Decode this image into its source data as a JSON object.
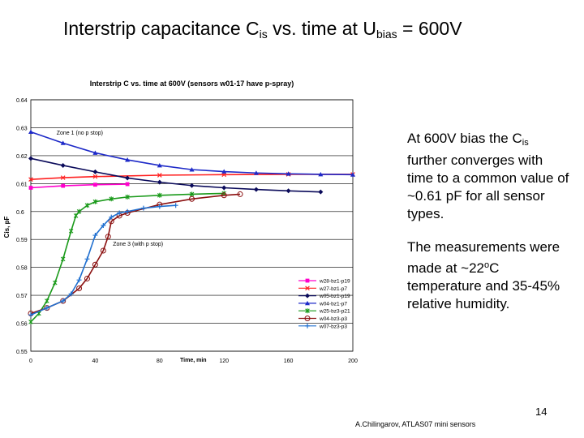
{
  "slide": {
    "title_main": "Interstrip capacitance C",
    "title_sub": "is",
    "title_mid": " vs. time at U",
    "title_sub2": "bias",
    "title_end": " = 600V",
    "note1_a": "At 600V bias the C",
    "note1_sub": "is",
    "note1_b": " further converges with time to a common value of ~0.61 pF for all sensor types.",
    "note2_a": "The measurements were made at ~22",
    "note2_sup": "o",
    "note2_b": "C temperature and 35-45% relative humidity.",
    "page_number": "14",
    "footer": "A.Chilingarov, ATLAS07 mini sensors"
  },
  "chart_data": {
    "type": "line",
    "title": "Interstrip C vs. time at 600V (sensors w01-17 have p-spray)",
    "xlabel": "Time, min",
    "ylabel": "Cis, pF",
    "xlim": [
      0,
      200
    ],
    "ylim": [
      0.55,
      0.64
    ],
    "x_ticks": [
      "0",
      "40",
      "80",
      "120",
      "160",
      "200"
    ],
    "x_tick_values": [
      0,
      40,
      80,
      120,
      160,
      200
    ],
    "y_ticks": [
      "0.64",
      "0.63",
      "0.62",
      "0.61",
      "0.6",
      "0.59",
      "0.58",
      "0.57",
      "0.56",
      "0.55"
    ],
    "y_tick_values": [
      0.64,
      0.63,
      0.62,
      0.61,
      0.6,
      0.59,
      0.58,
      0.57,
      0.56,
      0.55
    ],
    "annotations": [
      {
        "text": "Zone 1 (no p stop)",
        "x": 16,
        "y": 0.6275
      },
      {
        "text": "Zone 3 (with p stop)",
        "x": 51,
        "y": 0.5878
      }
    ],
    "legend_position": "lower-right",
    "series": [
      {
        "name": "w28-bz1-p19",
        "color": "#ff00cc",
        "marker": "square",
        "x": [
          0,
          20,
          40,
          60
        ],
        "y": [
          0.6085,
          0.6092,
          0.6096,
          0.6098
        ]
      },
      {
        "name": "w27-bz1-p7",
        "color": "#ff2020",
        "marker": "x",
        "x": [
          0,
          20,
          40,
          80,
          120,
          160,
          200
        ],
        "y": [
          0.6115,
          0.6121,
          0.6125,
          0.613,
          0.6132,
          0.6133,
          0.6133
        ]
      },
      {
        "name": "w05-bz1-p19",
        "color": "#0a0a5a",
        "marker": "diamond",
        "x": [
          0,
          20,
          40,
          60,
          80,
          100,
          120,
          140,
          160,
          180
        ],
        "y": [
          0.619,
          0.6165,
          0.6142,
          0.612,
          0.6105,
          0.6093,
          0.6085,
          0.6079,
          0.6074,
          0.607
        ]
      },
      {
        "name": "w04-bz1-p7",
        "color": "#1e2ac8",
        "marker": "triangle",
        "x": [
          0,
          20,
          40,
          60,
          80,
          100,
          120,
          140,
          160,
          180,
          200
        ],
        "y": [
          0.6285,
          0.6245,
          0.621,
          0.6185,
          0.6165,
          0.615,
          0.6143,
          0.6138,
          0.6135,
          0.6133,
          0.6132
        ]
      },
      {
        "name": "w25-bz3-p21",
        "color": "#1a9a1a",
        "marker": "star",
        "x": [
          0,
          5,
          10,
          15,
          20,
          25,
          28,
          30,
          35,
          40,
          50,
          60,
          80,
          100,
          120
        ],
        "y": [
          0.5605,
          0.5635,
          0.568,
          0.5745,
          0.583,
          0.593,
          0.5985,
          0.6,
          0.6022,
          0.6035,
          0.6045,
          0.6052,
          0.6058,
          0.6062,
          0.6065
        ]
      },
      {
        "name": "w04-bz3-p3",
        "color": "#8b1010",
        "marker": "circle",
        "x": [
          0,
          10,
          20,
          30,
          35,
          40,
          45,
          48,
          50,
          55,
          60,
          80,
          100,
          120,
          130
        ],
        "y": [
          0.5635,
          0.5655,
          0.568,
          0.5725,
          0.576,
          0.581,
          0.586,
          0.591,
          0.5965,
          0.5985,
          0.5995,
          0.6025,
          0.6045,
          0.6058,
          0.6062
        ]
      },
      {
        "name": "w07-bz3-p3",
        "color": "#2070d0",
        "marker": "plus",
        "x": [
          0,
          10,
          20,
          25,
          30,
          35,
          40,
          45,
          50,
          55,
          60,
          70,
          80,
          90
        ],
        "y": [
          0.563,
          0.5655,
          0.568,
          0.5705,
          0.5755,
          0.583,
          0.5915,
          0.595,
          0.598,
          0.5995,
          0.6,
          0.6012,
          0.6018,
          0.6022
        ]
      }
    ]
  }
}
